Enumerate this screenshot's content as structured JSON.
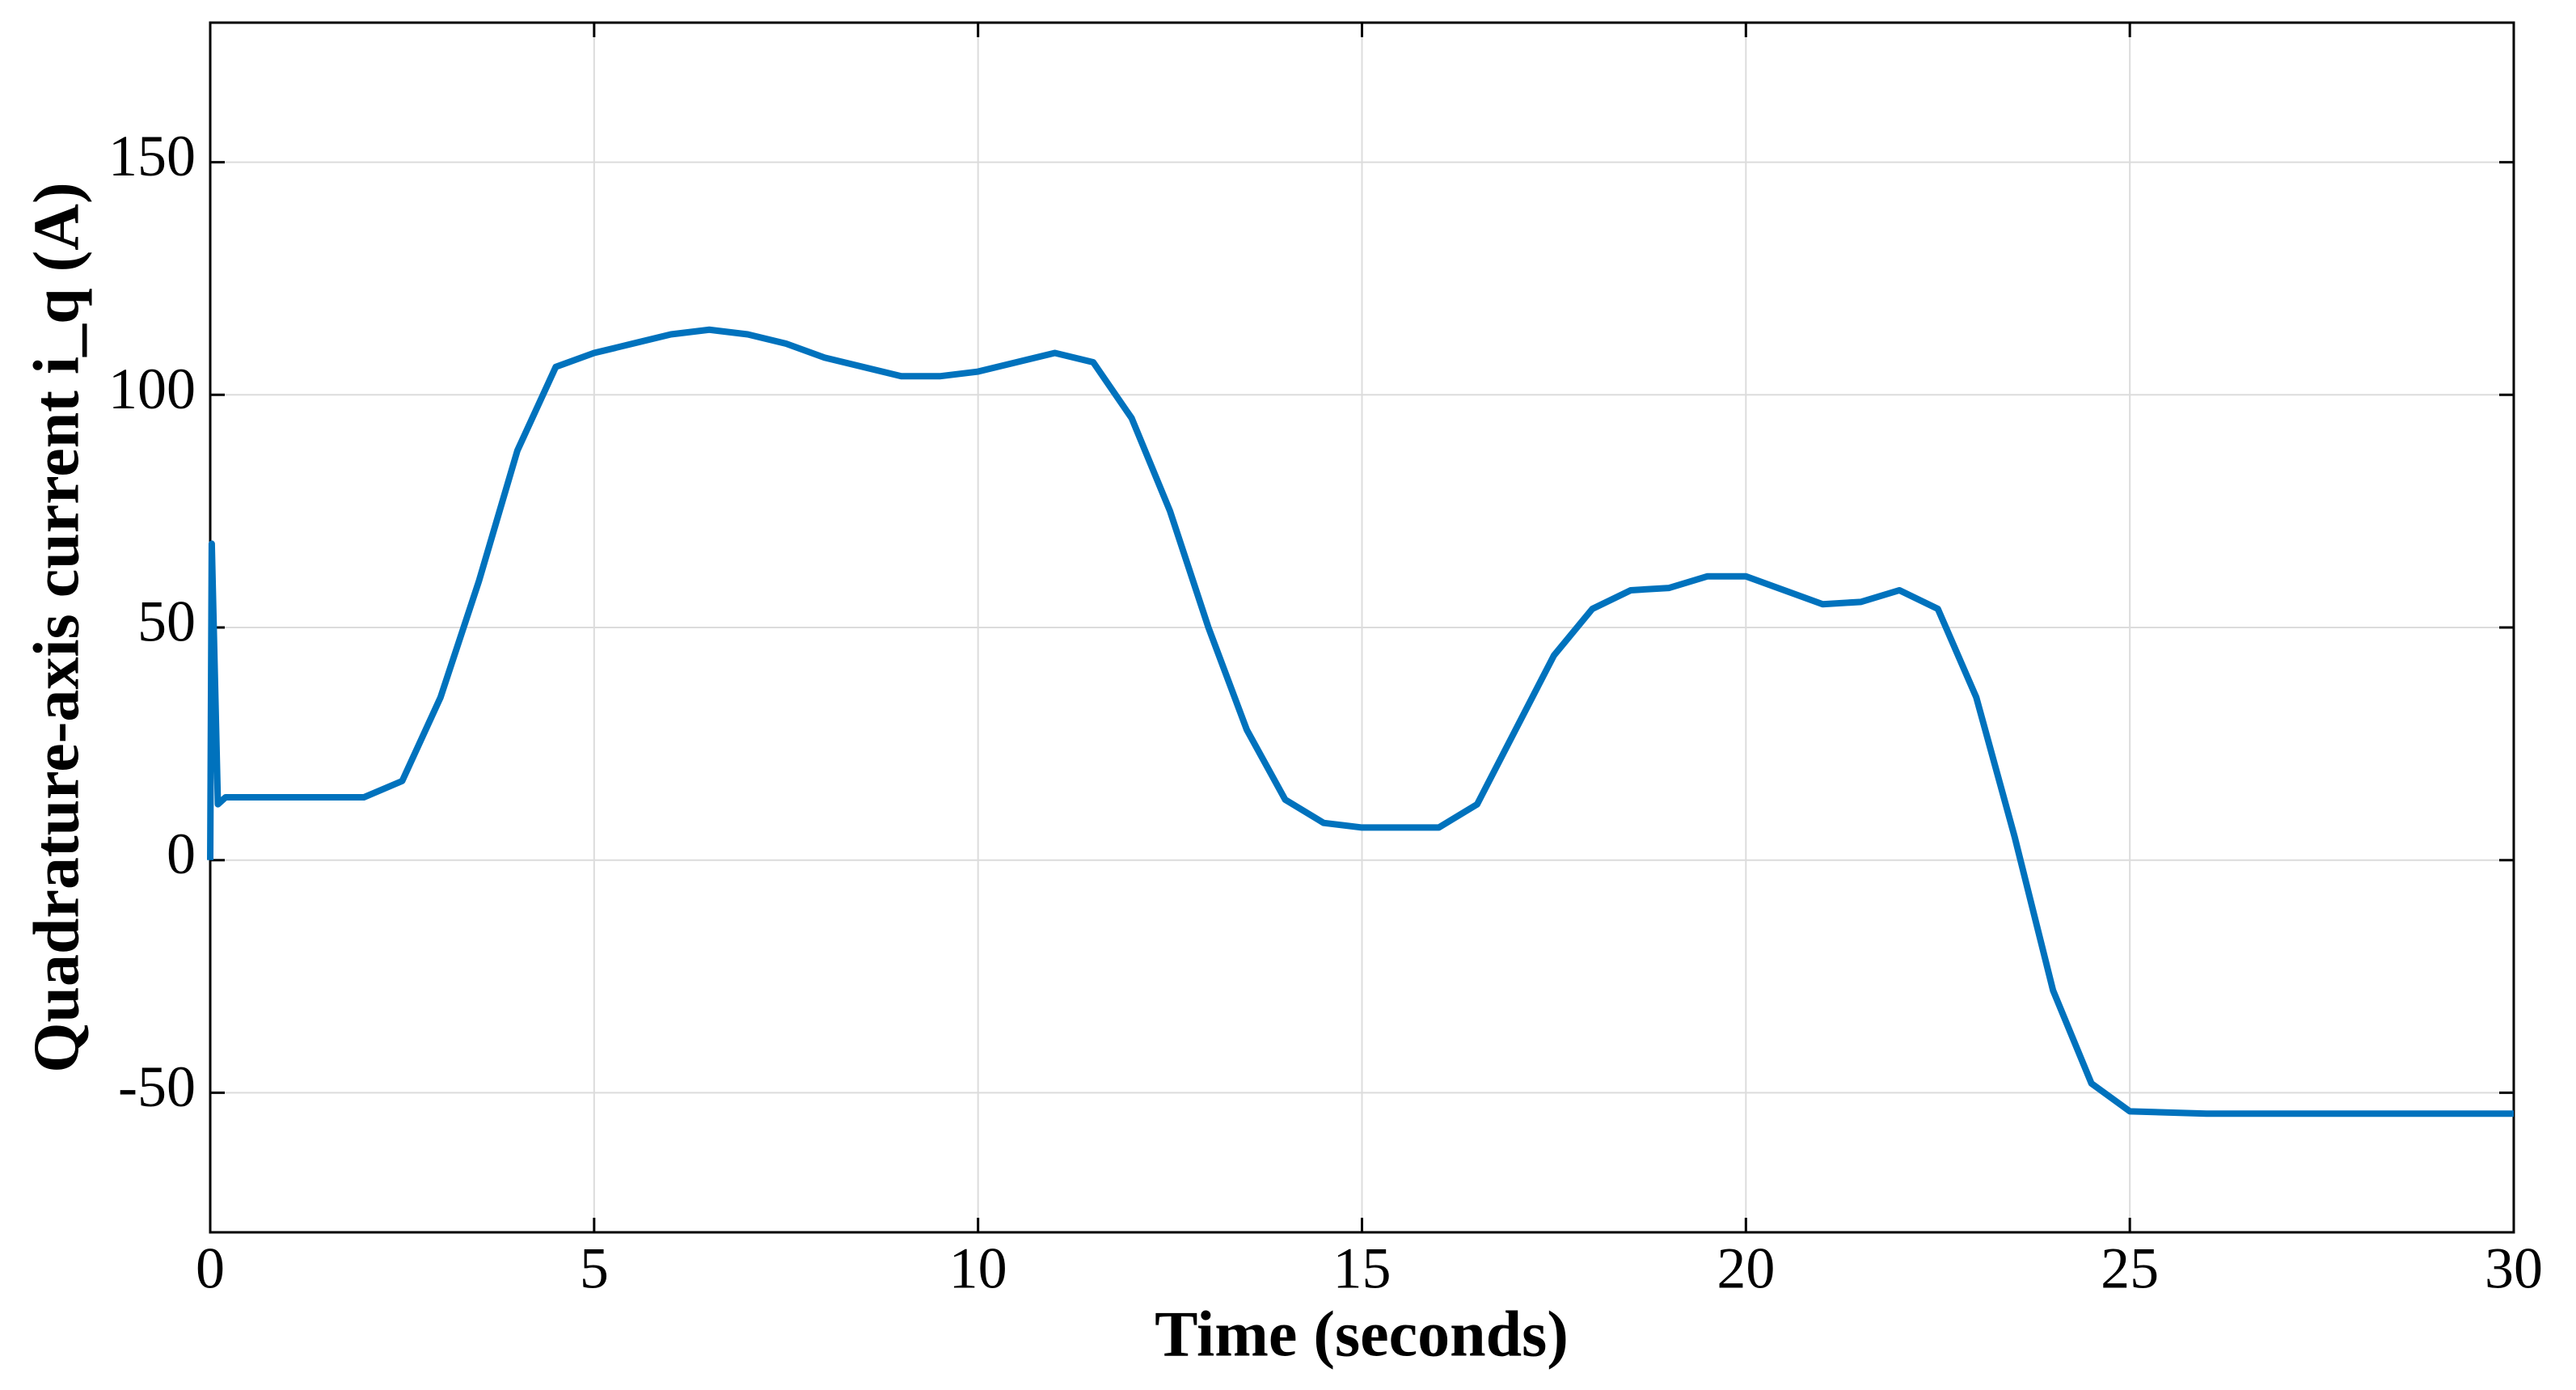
{
  "chart_data": {
    "type": "line",
    "xlabel": "Time (seconds)",
    "ylabel": "Quadrature-axis current i_q (A)",
    "x": [
      0,
      0.02,
      0.1,
      0.2,
      2.0,
      2.5,
      3.0,
      3.5,
      4.0,
      4.5,
      5.0,
      5.5,
      6.0,
      6.5,
      7.0,
      7.5,
      8.0,
      8.5,
      9.0,
      9.5,
      10.0,
      10.5,
      11.0,
      11.5,
      12.0,
      12.5,
      13.0,
      13.5,
      14.0,
      14.5,
      15.0,
      16.0,
      16.5,
      17.0,
      17.5,
      18.0,
      18.5,
      19.0,
      19.5,
      20.0,
      20.5,
      21.0,
      21.5,
      22.0,
      22.5,
      23.0,
      23.5,
      24.0,
      24.5,
      25.0,
      26.0,
      30.0
    ],
    "values": [
      0,
      68,
      12,
      13.5,
      13.5,
      17,
      35,
      60,
      88,
      106,
      109,
      111,
      113,
      114,
      113,
      111,
      108,
      106,
      104,
      104,
      105,
      107,
      109,
      107,
      95,
      75,
      50,
      28,
      13,
      8,
      7,
      7,
      12,
      28,
      44,
      54,
      58,
      58.5,
      61,
      61,
      58,
      55,
      55.5,
      58,
      54,
      35,
      5,
      -28,
      -48,
      -54,
      -54.5,
      -54.5
    ],
    "color": "#0072bd",
    "xlim": [
      0,
      30
    ],
    "xticks": [
      0,
      5,
      10,
      15,
      20,
      25,
      30
    ],
    "ylim": [
      -80,
      180
    ],
    "yticks": [
      -50,
      0,
      50,
      100,
      150
    ],
    "grid": true
  }
}
